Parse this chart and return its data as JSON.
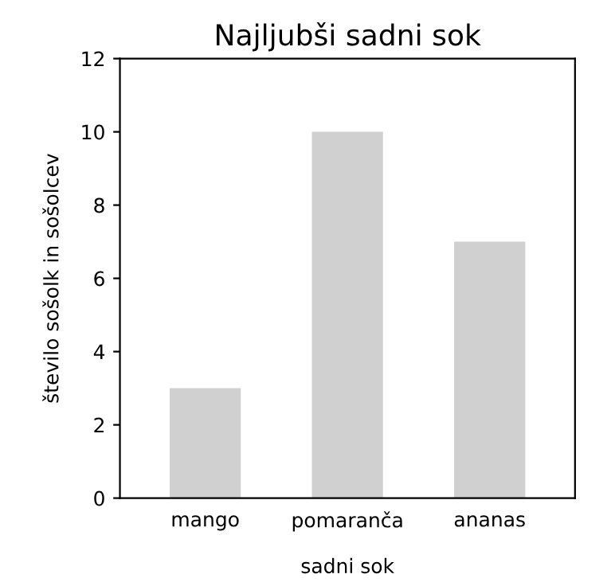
{
  "chart_data": {
    "type": "bar",
    "title": "Najljubši sadni sok",
    "xlabel": "sadni sok",
    "ylabel": "število sošolk in sošolcev",
    "categories": [
      "mango",
      "pomaranča",
      "ananas"
    ],
    "values": [
      3,
      10,
      7
    ],
    "color": "#d0d0d0",
    "ylim": [
      0,
      12
    ],
    "yticks": [
      0,
      2,
      4,
      6,
      8,
      10,
      12
    ],
    "grid": false,
    "legend": false
  }
}
